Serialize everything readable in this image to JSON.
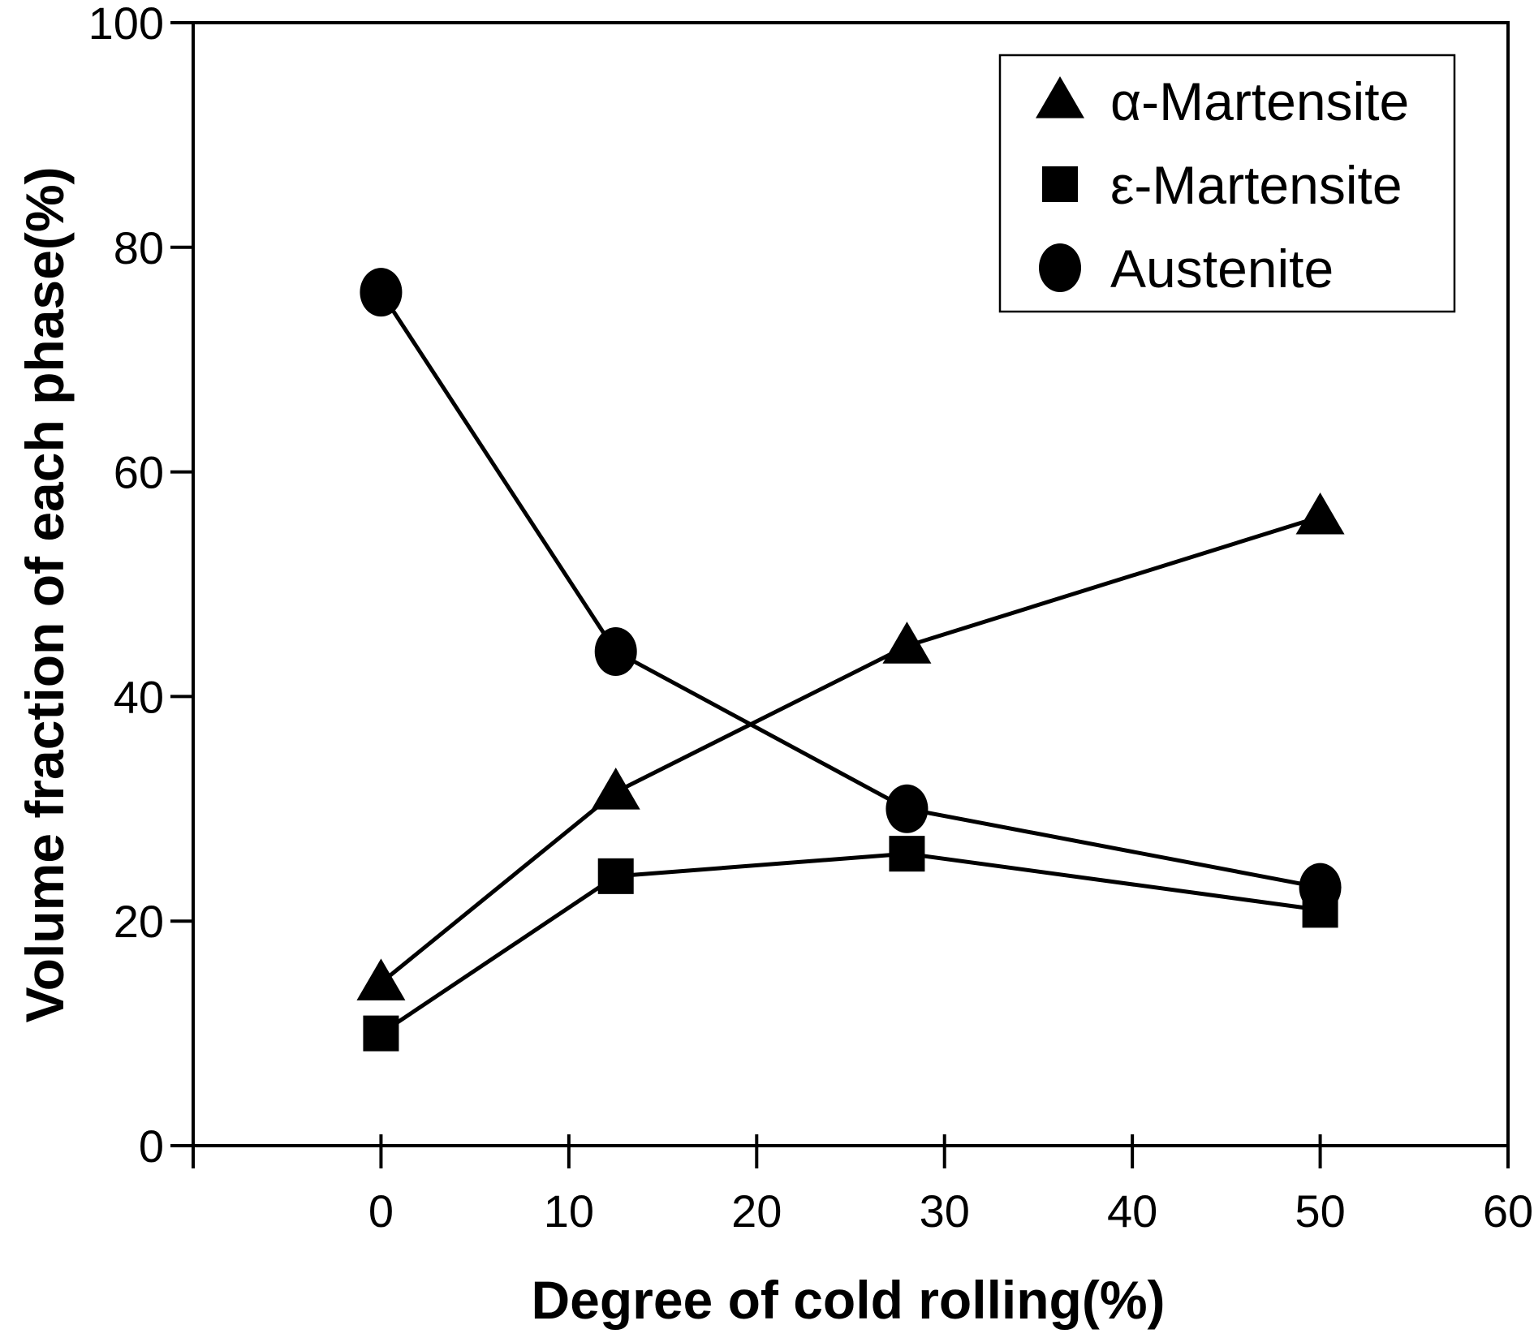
{
  "chart_data": {
    "type": "line",
    "title": "",
    "xlabel": "Degree of cold rolling(%)",
    "ylabel": "Volume fraction of each phase(%)",
    "xlim": [
      -10,
      60
    ],
    "ylim": [
      0,
      100
    ],
    "x_ticks": [
      0,
      10,
      20,
      30,
      40,
      50,
      60
    ],
    "y_ticks": [
      0,
      20,
      40,
      60,
      80,
      100
    ],
    "grid": false,
    "legend_position": "top-right",
    "series": [
      {
        "name": "α-Martensite",
        "marker": "triangle",
        "color": "#000000",
        "x": [
          0,
          12.5,
          28,
          50
        ],
        "y": [
          14.5,
          31.5,
          44.5,
          56
        ]
      },
      {
        "name": "ε-Martensite",
        "marker": "square",
        "color": "#000000",
        "x": [
          0,
          12.5,
          28,
          50
        ],
        "y": [
          10,
          24,
          26,
          21
        ]
      },
      {
        "name": "Austenite",
        "marker": "circle",
        "color": "#000000",
        "x": [
          0,
          12.5,
          28,
          50
        ],
        "y": [
          76,
          44,
          30,
          23
        ]
      }
    ]
  }
}
